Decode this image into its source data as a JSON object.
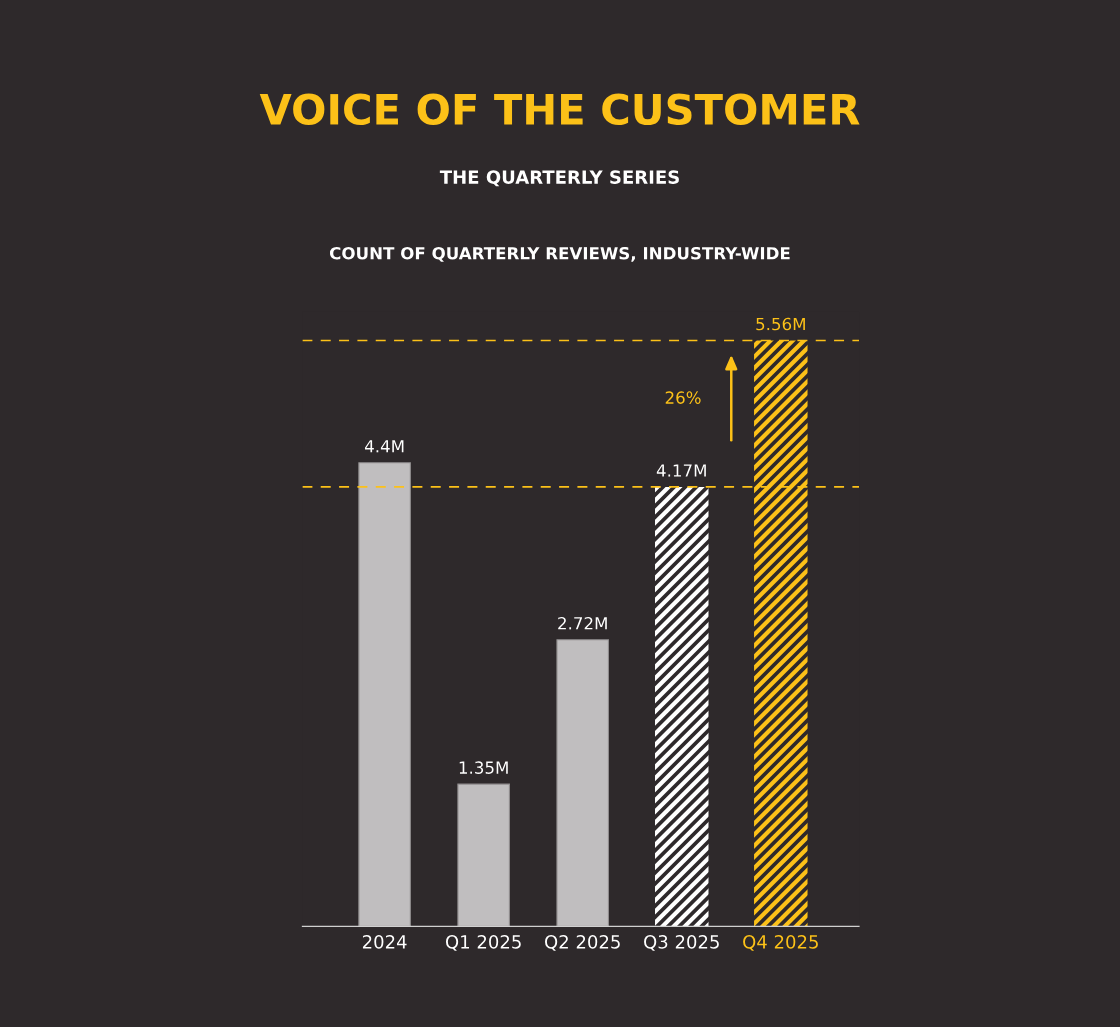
{
  "chart_data": {
    "type": "bar",
    "title": "VOICE OF THE CUSTOMER",
    "subtitle": "THE QUARTERLY SERIES",
    "annotations": [
      "COUNT OF QUARTERLY REVIEWS, INDUSTRY-WIDE",
      "26%"
    ],
    "categories": [
      "2024",
      "Q1 2025",
      "Q2 2025",
      "Q3 2025",
      "Q4 2025"
    ],
    "values": [
      4.4,
      1.35,
      2.72,
      4.17,
      5.56
    ],
    "value_labels": [
      "4.4M",
      "1.35M",
      "2.72M",
      "4.17M",
      "5.56M"
    ],
    "colors": [
      "#c0bebf",
      "#c0bebf",
      "#c0bebf",
      "#ffffff",
      "#fcc118"
    ],
    "ref_lines": [
      {
        "axis": "y",
        "value": 4.17,
        "color": "#fcc118",
        "line_style": "dashed"
      },
      {
        "axis": "y",
        "value": 5.56,
        "color": "#fcc118",
        "line_style": "dashed"
      }
    ],
    "grid": false,
    "legend": false
  }
}
